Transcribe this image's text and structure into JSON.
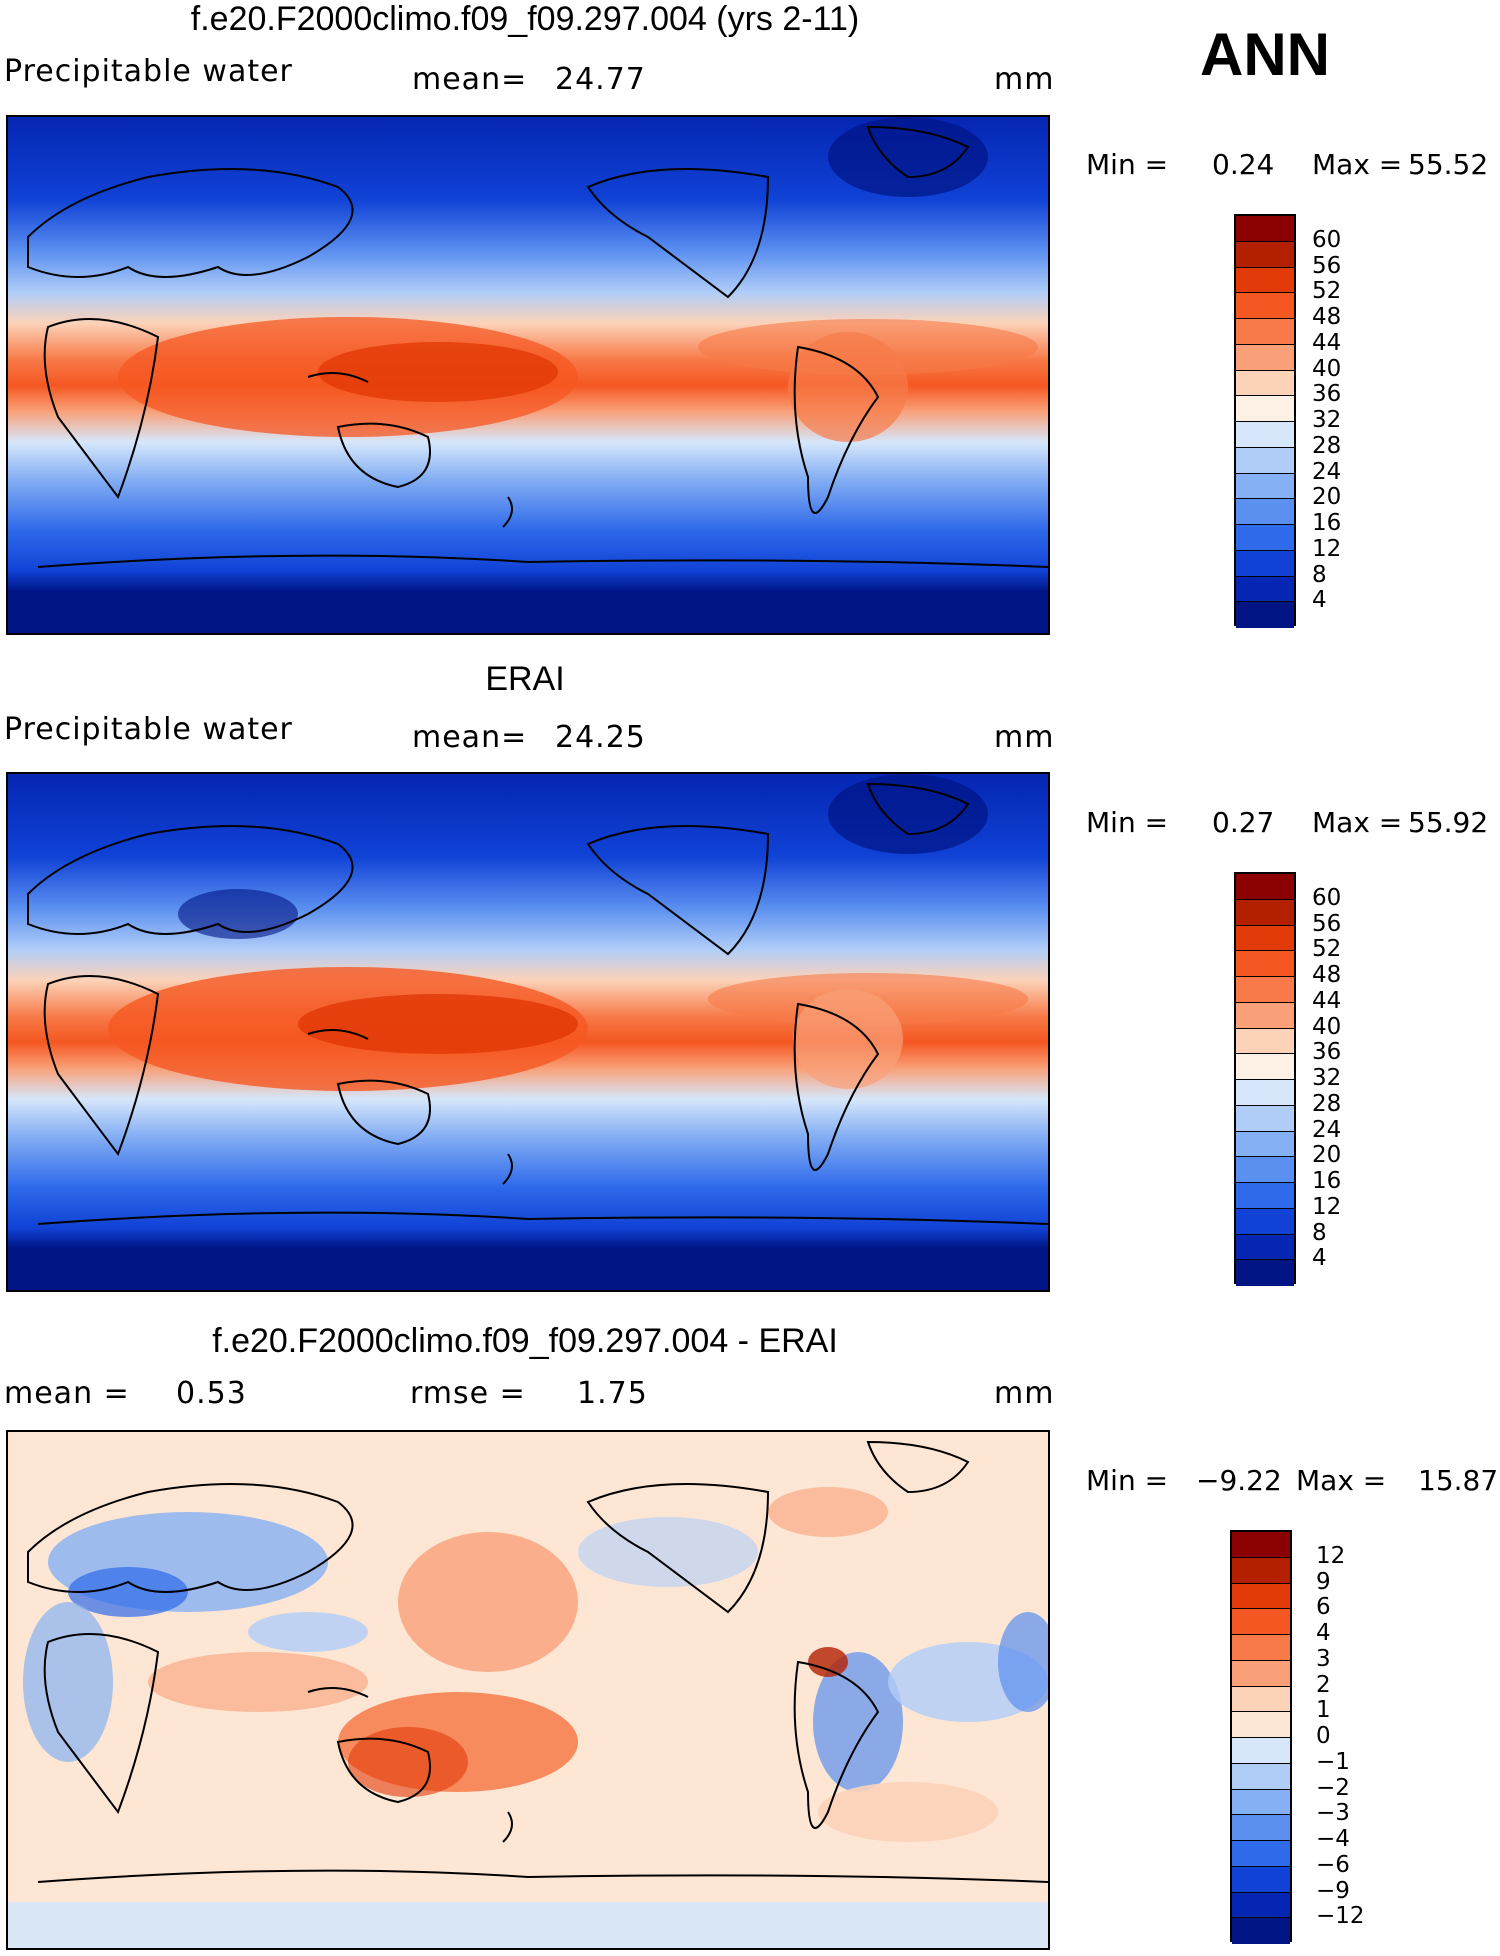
{
  "season": "ANN",
  "panels": [
    {
      "title": "f.e20.F2000climo.f09_f09.297.004 (yrs 2-11)",
      "left_label": "Precipitable  water",
      "mid_label": "mean=",
      "mid_value": "24.77",
      "right_label": "mm",
      "min_label": "Min  =",
      "min_value": "0.24",
      "max_label": "Max  =",
      "max_value": "55.52",
      "colorbar_labels": [
        "60",
        "56",
        "52",
        "48",
        "44",
        "40",
        "36",
        "32",
        "28",
        "24",
        "20",
        "16",
        "12",
        "8",
        "4"
      ],
      "colors": [
        "#8b0000",
        "#b32000",
        "#e23a08",
        "#f55722",
        "#f77a48",
        "#f9a078",
        "#fcd2b8",
        "#fdf0e4",
        "#d6e7fb",
        "#b0cdf8",
        "#86b0f4",
        "#5b8ff0",
        "#2f6aea",
        "#1042d6",
        "#0526b2",
        "#001484"
      ]
    },
    {
      "title": "ERAI",
      "left_label": "Precipitable  water",
      "mid_label": "mean=",
      "mid_value": "24.25",
      "right_label": "mm",
      "min_label": "Min  =",
      "min_value": "0.27",
      "max_label": "Max  =",
      "max_value": "55.92",
      "colorbar_labels": [
        "60",
        "56",
        "52",
        "48",
        "44",
        "40",
        "36",
        "32",
        "28",
        "24",
        "20",
        "16",
        "12",
        "8",
        "4"
      ],
      "colors": [
        "#8b0000",
        "#b32000",
        "#e23a08",
        "#f55722",
        "#f77a48",
        "#f9a078",
        "#fcd2b8",
        "#fdf0e4",
        "#d6e7fb",
        "#b0cdf8",
        "#86b0f4",
        "#5b8ff0",
        "#2f6aea",
        "#1042d6",
        "#0526b2",
        "#001484"
      ]
    },
    {
      "title": "f.e20.F2000climo.f09_f09.297.004 - ERAI",
      "left_label": "mean  =",
      "left_value": "0.53",
      "mid_label": "rmse  =",
      "mid_value": "1.75",
      "right_label": "mm",
      "min_label": "Min  =",
      "min_value": "−9.22",
      "max_label": "Max  =",
      "max_value": "15.87",
      "colorbar_labels": [
        "12",
        "9",
        "6",
        "4",
        "3",
        "2",
        "1",
        "0",
        "−1",
        "−2",
        "−3",
        "−4",
        "−6",
        "−9",
        "−12"
      ],
      "colors": [
        "#8b0000",
        "#b32000",
        "#e23a08",
        "#f55722",
        "#f77a48",
        "#f9a078",
        "#fcd2b8",
        "#fde6d4",
        "#d6e7fb",
        "#b0cdf8",
        "#86b0f4",
        "#5b8ff0",
        "#2f6aea",
        "#1042d6",
        "#0526b2",
        "#001484"
      ]
    }
  ]
}
